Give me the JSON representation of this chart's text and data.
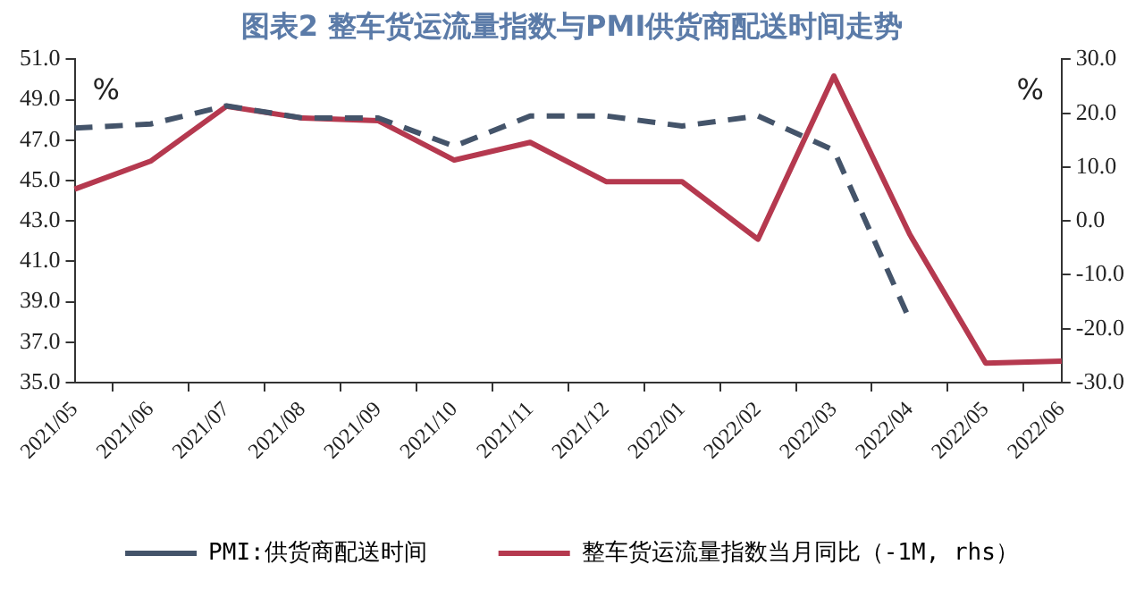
{
  "chart_data": {
    "type": "line",
    "title": "图表2 整车货运流量指数与PMI供货商配送时间走势",
    "ylabel": "%",
    "y2label": "%",
    "categories": [
      "2021/05",
      "2021/06",
      "2021/07",
      "2021/08",
      "2021/09",
      "2021/10",
      "2021/11",
      "2021/12",
      "2022/01",
      "2022/02",
      "2022/03",
      "2022/04",
      "2022/05",
      "2022/06"
    ],
    "series": [
      {
        "name": "PMI:供货商配送时间",
        "color": "#44546a",
        "line_style": "dashed",
        "values": [
          47.6,
          47.8,
          48.7,
          48.1,
          48.1,
          46.7,
          48.2,
          48.2,
          47.7,
          48.2,
          46.5,
          38.1,
          null,
          null
        ]
      },
      {
        "name": "整车货运流量指数当月同比（-1M, rhs）",
        "color": "#b5394f",
        "line_style": "solid",
        "axis": "y2",
        "values": [
          5.9,
          11.1,
          21.3,
          19.1,
          18.6,
          11.3,
          14.6,
          7.3,
          7.3,
          -3.4,
          26.9,
          -2.5,
          -26.4,
          -26.0
        ]
      }
    ],
    "ylim": [
      35,
      51
    ],
    "yticks": [
      {
        "value": 35,
        "label": "35.0"
      },
      {
        "value": 37,
        "label": "37.0"
      },
      {
        "value": 39,
        "label": "39.0"
      },
      {
        "value": 41,
        "label": "41.0"
      },
      {
        "value": 43,
        "label": "43.0"
      },
      {
        "value": 45,
        "label": "45.0"
      },
      {
        "value": 47,
        "label": "47.0"
      },
      {
        "value": 49,
        "label": "49.0"
      },
      {
        "value": 51,
        "label": "51.0"
      }
    ],
    "y2lim": [
      -30,
      30
    ],
    "y2ticks": [
      {
        "value": -30,
        "label": "-30.0"
      },
      {
        "value": -20,
        "label": "-20.0"
      },
      {
        "value": -10,
        "label": "-10.0"
      },
      {
        "value": 0,
        "label": "0.0"
      },
      {
        "value": 10,
        "label": "10.0"
      },
      {
        "value": 20,
        "label": "20.0"
      },
      {
        "value": 30,
        "label": "30.0"
      }
    ],
    "grid": false,
    "legend": "bottom",
    "marker": "none"
  }
}
